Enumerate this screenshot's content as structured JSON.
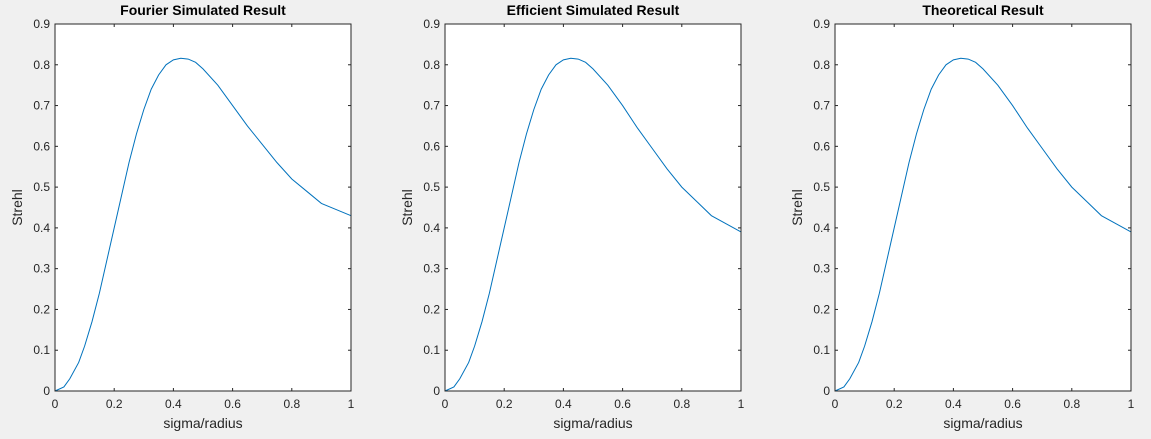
{
  "figure": {
    "background": "#f0f0f0"
  },
  "chart_data": [
    {
      "type": "line",
      "title": "Fourier Simulated Result",
      "xlabel": "sigma/radius",
      "ylabel": "Strehl",
      "xlim": [
        0,
        1
      ],
      "ylim": [
        0,
        0.9
      ],
      "xticks": [
        "0",
        "0.2",
        "0.4",
        "0.6",
        "0.8",
        "1"
      ],
      "yticks": [
        "0",
        "0.1",
        "0.2",
        "0.3",
        "0.4",
        "0.5",
        "0.6",
        "0.7",
        "0.8",
        "0.9"
      ],
      "grid": false,
      "series": [
        {
          "color": "#0072bd",
          "x": [
            0,
            0.03,
            0.05,
            0.08,
            0.1,
            0.125,
            0.15,
            0.175,
            0.2,
            0.225,
            0.25,
            0.275,
            0.3,
            0.325,
            0.35,
            0.375,
            0.4,
            0.425,
            0.45,
            0.475,
            0.5,
            0.55,
            0.6,
            0.65,
            0.7,
            0.75,
            0.8,
            0.85,
            0.9,
            0.95,
            1.0
          ],
          "y": [
            0,
            0.01,
            0.03,
            0.07,
            0.11,
            0.17,
            0.24,
            0.32,
            0.4,
            0.48,
            0.56,
            0.63,
            0.69,
            0.74,
            0.775,
            0.8,
            0.812,
            0.816,
            0.814,
            0.806,
            0.79,
            0.75,
            0.7,
            0.65,
            0.605,
            0.56,
            0.52,
            0.49,
            0.46,
            0.445,
            0.43
          ]
        }
      ]
    },
    {
      "type": "line",
      "title": "Efficient Simulated Result",
      "xlabel": "sigma/radius",
      "ylabel": "Strehl",
      "xlim": [
        0,
        1
      ],
      "ylim": [
        0,
        0.9
      ],
      "xticks": [
        "0",
        "0.2",
        "0.4",
        "0.6",
        "0.8",
        "1"
      ],
      "yticks": [
        "0",
        "0.1",
        "0.2",
        "0.3",
        "0.4",
        "0.5",
        "0.6",
        "0.7",
        "0.8",
        "0.9"
      ],
      "grid": false,
      "series": [
        {
          "color": "#0072bd",
          "x": [
            0,
            0.03,
            0.05,
            0.08,
            0.1,
            0.125,
            0.15,
            0.175,
            0.2,
            0.225,
            0.25,
            0.275,
            0.3,
            0.325,
            0.35,
            0.375,
            0.4,
            0.425,
            0.45,
            0.475,
            0.5,
            0.55,
            0.6,
            0.65,
            0.7,
            0.75,
            0.8,
            0.85,
            0.9,
            0.95,
            1.0
          ],
          "y": [
            0,
            0.01,
            0.03,
            0.07,
            0.11,
            0.17,
            0.24,
            0.32,
            0.4,
            0.48,
            0.56,
            0.63,
            0.69,
            0.74,
            0.775,
            0.8,
            0.812,
            0.816,
            0.814,
            0.806,
            0.79,
            0.75,
            0.7,
            0.645,
            0.595,
            0.545,
            0.5,
            0.465,
            0.43,
            0.41,
            0.39
          ]
        }
      ]
    },
    {
      "type": "line",
      "title": "Theoretical Result",
      "xlabel": "sigma/radius",
      "ylabel": "Strehl",
      "xlim": [
        0,
        1
      ],
      "ylim": [
        0,
        0.9
      ],
      "xticks": [
        "0",
        "0.2",
        "0.4",
        "0.6",
        "0.8",
        "1"
      ],
      "yticks": [
        "0",
        "0.1",
        "0.2",
        "0.3",
        "0.4",
        "0.5",
        "0.6",
        "0.7",
        "0.8",
        "0.9"
      ],
      "grid": false,
      "series": [
        {
          "color": "#0072bd",
          "x": [
            0,
            0.03,
            0.05,
            0.08,
            0.1,
            0.125,
            0.15,
            0.175,
            0.2,
            0.225,
            0.25,
            0.275,
            0.3,
            0.325,
            0.35,
            0.375,
            0.4,
            0.425,
            0.45,
            0.475,
            0.5,
            0.55,
            0.6,
            0.65,
            0.7,
            0.75,
            0.8,
            0.85,
            0.9,
            0.95,
            1.0
          ],
          "y": [
            0,
            0.01,
            0.03,
            0.07,
            0.11,
            0.17,
            0.24,
            0.32,
            0.4,
            0.48,
            0.56,
            0.63,
            0.69,
            0.74,
            0.775,
            0.8,
            0.812,
            0.816,
            0.814,
            0.806,
            0.79,
            0.75,
            0.7,
            0.645,
            0.595,
            0.545,
            0.5,
            0.465,
            0.43,
            0.41,
            0.39
          ]
        }
      ]
    }
  ]
}
